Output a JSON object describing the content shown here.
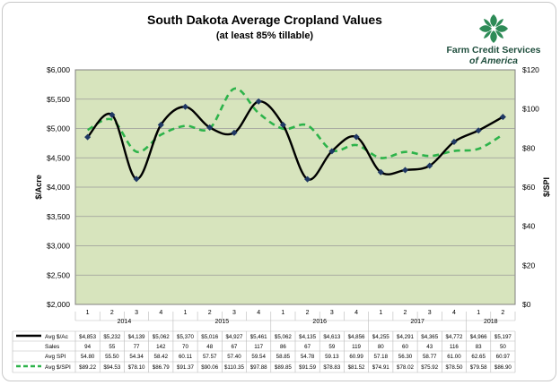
{
  "title": "South Dakota Average Cropland Values",
  "subtitle": "(at least 85% tillable)",
  "logo": {
    "line1": "Farm Credit Services",
    "line2": "of America",
    "icon": "farm-credit-leaf-logo",
    "color": "#2e8b57"
  },
  "chart_data": {
    "type": "line",
    "title": "South Dakota Average Cropland Values",
    "ylabel_left": "$/Acre",
    "ylabel_right": "$/SPI",
    "ylim_left": [
      2000,
      6000
    ],
    "ylim_right": [
      0,
      120
    ],
    "y_ticks_left": [
      "$2,000",
      "$2,500",
      "$3,000",
      "$3,500",
      "$4,000",
      "$4,500",
      "$5,000",
      "$5,500",
      "$6,000"
    ],
    "y_ticks_right": [
      "$0",
      "$20",
      "$40",
      "$60",
      "$80",
      "$100",
      "$120"
    ],
    "grid": true,
    "plot_background": "#d7e4bd",
    "quarters": [
      "1",
      "2",
      "3",
      "4",
      "1",
      "2",
      "3",
      "4",
      "1",
      "2",
      "3",
      "4",
      "1",
      "2",
      "3",
      "4",
      "1",
      "2"
    ],
    "years": [
      {
        "label": "2014",
        "span": 4
      },
      {
        "label": "2015",
        "span": 4
      },
      {
        "label": "2016",
        "span": 4
      },
      {
        "label": "2017",
        "span": 4
      },
      {
        "label": "2018",
        "span": 2
      }
    ],
    "series": [
      {
        "name": "Avg $/Ac",
        "axis": "left",
        "color": "#000000",
        "marker_color": "#1f3864",
        "style": "solid",
        "values": [
          4853,
          5232,
          4139,
          5062,
          5370,
          5016,
          4927,
          5461,
          5062,
          4135,
          4613,
          4856,
          4255,
          4291,
          4365,
          4772,
          4966,
          5197
        ],
        "labels": [
          "$4,853",
          "$5,232",
          "$4,139",
          "$5,062",
          "$5,370",
          "$5,016",
          "$4,927",
          "$5,461",
          "$5,062",
          "$4,135",
          "$4,613",
          "$4,856",
          "$4,255",
          "$4,291",
          "$4,365",
          "$4,772",
          "$4,966",
          "$5,197"
        ]
      },
      {
        "name": "Avg $/SPI",
        "axis": "right",
        "color": "#2db34a",
        "style": "dashed",
        "values": [
          89.22,
          94.53,
          78.1,
          86.79,
          91.37,
          90.06,
          110.35,
          97.88,
          89.85,
          91.59,
          78.83,
          81.52,
          74.91,
          78.02,
          75.92,
          78.5,
          79.58,
          86.9
        ],
        "labels": [
          "$89.22",
          "$94.53",
          "$78.10",
          "$86.79",
          "$91.37",
          "$90.06",
          "$110.35",
          "$97.88",
          "$89.85",
          "$91.59",
          "$78.83",
          "$81.52",
          "$74.91",
          "$78.02",
          "$75.92",
          "$78.50",
          "$79.58",
          "$86.90"
        ]
      }
    ],
    "table_rows": [
      {
        "label": "Sales",
        "values": [
          "94",
          "55",
          "77",
          "142",
          "70",
          "48",
          "67",
          "117",
          "86",
          "67",
          "59",
          "119",
          "80",
          "60",
          "43",
          "116",
          "83",
          "50"
        ]
      },
      {
        "label": "Avg SPI",
        "values": [
          "54.80",
          "55.50",
          "54.34",
          "58.42",
          "60.11",
          "57.57",
          "57.40",
          "59.54",
          "58.85",
          "54.78",
          "59.13",
          "60.99",
          "57.18",
          "56.30",
          "58.77",
          "61.00",
          "62.65",
          "60.97"
        ]
      }
    ]
  }
}
